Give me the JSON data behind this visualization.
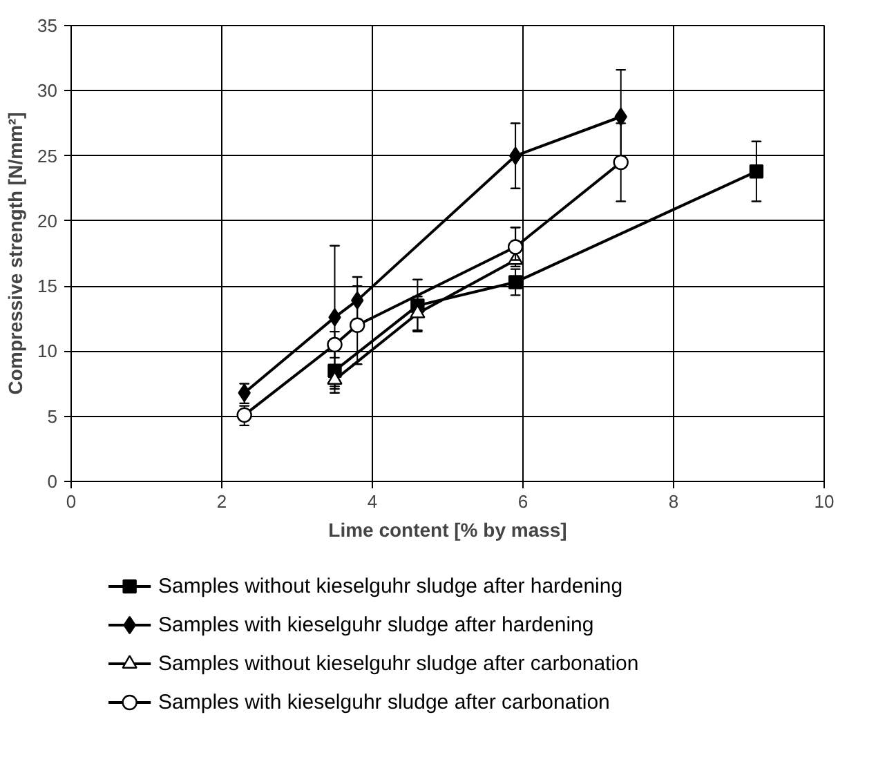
{
  "chart_data": {
    "type": "line",
    "xlabel": "Lime content [% by mass]",
    "ylabel": "Compressive strength [N/mm²]",
    "xlim": [
      0,
      10
    ],
    "xticks": [
      0,
      2,
      4,
      6,
      8,
      10
    ],
    "ylim": [
      0,
      35
    ],
    "yticks": [
      0,
      5,
      10,
      15,
      20,
      25,
      30,
      35
    ],
    "grid": true,
    "legend": "bottom",
    "line_style": "solid",
    "series": [
      {
        "name": "Samples without kieselguhr sludge after hardening",
        "color": "#000000",
        "marker": "square",
        "x": [
          3.5,
          4.6,
          5.9,
          9.1
        ],
        "values": [
          8.5,
          13.5,
          15.3,
          23.8
        ],
        "errors": [
          [
            6.8,
            10.2
          ],
          [
            11.5,
            15.5
          ],
          [
            14.3,
            16.3
          ],
          [
            21.5,
            26.1
          ]
        ]
      },
      {
        "name": "Samples with kieselguhr sludge after hardening",
        "color": "#000000",
        "marker": "diamond",
        "x": [
          2.3,
          3.5,
          3.8,
          5.9,
          7.3
        ],
        "values": [
          6.8,
          12.6,
          13.9,
          25.0,
          28.0
        ],
        "errors": [
          [
            6.0,
            7.5
          ],
          [
            7.1,
            18.1
          ],
          [
            12.1,
            15.7
          ],
          [
            22.5,
            27.5
          ],
          [
            24.4,
            31.6
          ]
        ]
      },
      {
        "name": "Samples without kieselguhr sludge after carbonation",
        "color": "#000000",
        "marker": "triangle",
        "x": [
          3.5,
          4.6,
          5.9
        ],
        "values": [
          7.8,
          12.9,
          17.0
        ],
        "errors": [
          [
            7.3,
            8.3
          ],
          [
            11.6,
            14.2
          ],
          [
            16.5,
            19.5
          ]
        ]
      },
      {
        "name": "Samples with kieselguhr sludge after carbonation",
        "color": "#000000",
        "marker": "circle",
        "x": [
          2.3,
          3.5,
          3.8,
          5.9,
          7.3
        ],
        "values": [
          5.1,
          10.5,
          12.0,
          18.0,
          24.5
        ],
        "errors": [
          [
            4.3,
            5.8
          ],
          [
            9.5,
            11.5
          ],
          [
            9.0,
            15.0
          ],
          [
            17.0,
            19.5
          ],
          [
            21.5,
            27.5
          ]
        ]
      }
    ]
  }
}
